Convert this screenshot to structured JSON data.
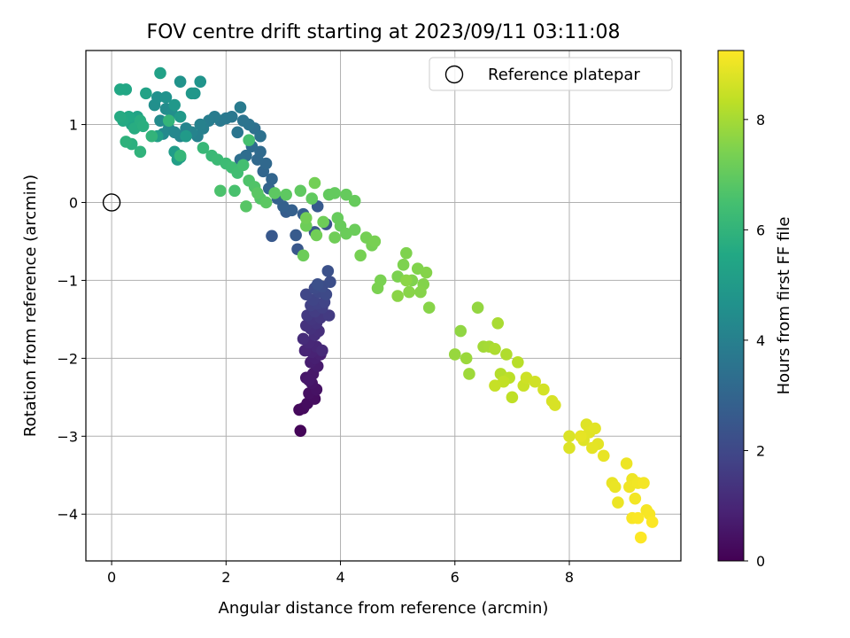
{
  "chart_data": {
    "type": "scatter",
    "title": "FOV centre drift starting at 2023/09/11 03:11:08",
    "xlabel": "Angular distance from reference (arcmin)",
    "ylabel": "Rotation from reference (arcmin)",
    "xlim": [
      -0.45,
      9.95
    ],
    "ylim": [
      -4.6,
      1.95
    ],
    "xticks": [
      0,
      2,
      4,
      6,
      8
    ],
    "yticks": [
      1,
      0,
      -1,
      -2,
      -3,
      -4
    ],
    "xtick_labels": [
      "0",
      "2",
      "4",
      "6",
      "8"
    ],
    "ytick_labels": [
      "1",
      "0",
      "−1",
      "−2",
      "−3",
      "−4"
    ],
    "grid": true,
    "legend": {
      "position": "top-right",
      "entries": [
        {
          "label": "Reference platepar",
          "marker": "open-circle"
        }
      ]
    },
    "reference_point": {
      "x": 0,
      "y": 0
    },
    "colorbar": {
      "label": "Hours from first FF file",
      "range": [
        0,
        9.25
      ],
      "ticks": [
        0,
        2,
        4,
        6,
        8
      ],
      "tick_labels": [
        "0",
        "2",
        "4",
        "6",
        "8"
      ],
      "colormap": "viridis"
    },
    "series": [
      {
        "color_value": "hours",
        "points": [
          [
            3.3,
            -2.93,
            0.1
          ],
          [
            3.28,
            -2.66,
            0.2
          ],
          [
            3.35,
            -2.64,
            0.25
          ],
          [
            3.42,
            -2.58,
            0.3
          ],
          [
            3.55,
            -2.52,
            0.35
          ],
          [
            3.45,
            -2.45,
            0.4
          ],
          [
            3.58,
            -2.4,
            0.45
          ],
          [
            3.5,
            -2.32,
            0.5
          ],
          [
            3.4,
            -2.25,
            0.55
          ],
          [
            3.52,
            -2.2,
            0.6
          ],
          [
            3.45,
            -2.28,
            0.62
          ],
          [
            3.6,
            -2.1,
            0.7
          ],
          [
            3.48,
            -2.05,
            0.75
          ],
          [
            3.55,
            -2.0,
            0.8
          ],
          [
            3.65,
            -1.95,
            0.85
          ],
          [
            3.5,
            -1.92,
            0.9
          ],
          [
            3.38,
            -1.9,
            0.95
          ],
          [
            3.58,
            -1.85,
            1.0
          ],
          [
            3.45,
            -1.8,
            1.05
          ],
          [
            3.68,
            -1.9,
            1.1
          ],
          [
            3.35,
            -1.75,
            1.15
          ],
          [
            3.55,
            -1.7,
            1.2
          ],
          [
            3.62,
            -1.65,
            1.25
          ],
          [
            3.48,
            -1.62,
            1.3
          ],
          [
            3.4,
            -1.58,
            1.35
          ],
          [
            3.58,
            -1.55,
            1.4
          ],
          [
            3.5,
            -1.5,
            1.45
          ],
          [
            3.65,
            -1.48,
            1.5
          ],
          [
            3.42,
            -1.45,
            1.55
          ],
          [
            3.8,
            -1.45,
            1.6
          ],
          [
            3.55,
            -1.4,
            1.65
          ],
          [
            3.68,
            -1.35,
            1.7
          ],
          [
            3.48,
            -1.32,
            1.75
          ],
          [
            3.6,
            -1.3,
            1.8
          ],
          [
            3.72,
            -1.28,
            1.85
          ],
          [
            3.52,
            -1.25,
            1.9
          ],
          [
            3.4,
            -1.18,
            1.95
          ],
          [
            3.62,
            -1.15,
            2.0
          ],
          [
            3.75,
            -1.18,
            2.05
          ],
          [
            3.55,
            -1.1,
            2.1
          ],
          [
            3.68,
            -1.08,
            2.15
          ],
          [
            3.82,
            -1.02,
            2.2
          ],
          [
            3.6,
            -1.05,
            2.25
          ],
          [
            3.78,
            -0.88,
            2.3
          ],
          [
            3.75,
            -0.28,
            2.4
          ],
          [
            3.55,
            -0.38,
            2.45
          ],
          [
            3.25,
            -0.6,
            2.5
          ],
          [
            2.8,
            -0.43,
            2.55
          ],
          [
            3.6,
            -0.05,
            2.6
          ],
          [
            3.22,
            -0.42,
            2.65
          ],
          [
            3.05,
            -0.12,
            2.7
          ],
          [
            3.35,
            -0.15,
            2.75
          ],
          [
            3.15,
            -0.1,
            2.8
          ],
          [
            3.0,
            -0.05,
            2.85
          ],
          [
            2.9,
            0.05,
            2.9
          ],
          [
            2.75,
            0.18,
            2.95
          ],
          [
            2.8,
            0.3,
            3.0
          ],
          [
            2.65,
            0.4,
            3.05
          ],
          [
            2.7,
            0.5,
            3.1
          ],
          [
            2.55,
            0.55,
            3.15
          ],
          [
            2.6,
            0.65,
            3.2
          ],
          [
            2.45,
            0.72,
            3.25
          ],
          [
            2.35,
            0.6,
            3.3
          ],
          [
            2.25,
            0.55,
            3.35
          ],
          [
            2.5,
            0.95,
            3.4
          ],
          [
            2.6,
            0.85,
            3.45
          ],
          [
            2.4,
            1.0,
            3.5
          ],
          [
            2.3,
            1.05,
            3.55
          ],
          [
            2.2,
            0.9,
            3.6
          ],
          [
            2.1,
            1.1,
            3.65
          ],
          [
            2.0,
            1.08,
            3.7
          ],
          [
            1.9,
            1.05,
            3.75
          ],
          [
            2.25,
            1.22,
            3.8
          ],
          [
            1.8,
            1.1,
            3.85
          ],
          [
            1.7,
            1.05,
            3.9
          ],
          [
            1.6,
            0.95,
            3.95
          ],
          [
            1.5,
            0.85,
            4.0
          ],
          [
            1.55,
            1.0,
            4.05
          ],
          [
            1.4,
            0.9,
            4.1
          ],
          [
            1.3,
            0.95,
            4.15
          ],
          [
            1.2,
            0.85,
            4.2
          ],
          [
            1.1,
            0.9,
            4.25
          ],
          [
            1.0,
            0.95,
            4.3
          ],
          [
            0.9,
            0.88,
            4.35
          ],
          [
            0.85,
            1.05,
            4.4
          ],
          [
            0.95,
            1.2,
            4.45
          ],
          [
            1.05,
            1.15,
            4.5
          ],
          [
            0.75,
            1.25,
            4.55
          ],
          [
            0.8,
            1.35,
            4.6
          ],
          [
            0.95,
            1.35,
            4.65
          ],
          [
            1.2,
            1.55,
            4.7
          ],
          [
            1.55,
            1.55,
            4.75
          ],
          [
            1.45,
            1.4,
            4.8
          ],
          [
            1.4,
            1.4,
            4.85
          ],
          [
            1.1,
            1.25,
            4.9
          ],
          [
            1.2,
            1.1,
            4.95
          ],
          [
            1.3,
            0.85,
            5.0
          ],
          [
            1.1,
            0.65,
            5.05
          ],
          [
            1.2,
            0.58,
            5.1
          ],
          [
            1.15,
            0.55,
            5.15
          ],
          [
            0.8,
            0.85,
            5.2
          ],
          [
            0.85,
            1.66,
            5.25
          ],
          [
            0.6,
            1.4,
            5.3
          ],
          [
            0.45,
            1.1,
            5.35
          ],
          [
            0.35,
            1.0,
            5.4
          ],
          [
            0.25,
            1.45,
            5.45
          ],
          [
            0.15,
            1.45,
            5.5
          ],
          [
            0.3,
            1.1,
            5.55
          ],
          [
            0.2,
            1.05,
            5.6
          ],
          [
            0.15,
            1.1,
            5.65
          ],
          [
            0.4,
            0.95,
            5.7
          ],
          [
            0.5,
            1.05,
            5.75
          ],
          [
            0.55,
            0.98,
            5.8
          ],
          [
            0.35,
            0.75,
            5.85
          ],
          [
            0.25,
            0.78,
            5.9
          ],
          [
            0.5,
            0.65,
            5.95
          ],
          [
            0.7,
            0.85,
            6.0
          ],
          [
            1.0,
            1.05,
            6.05
          ],
          [
            1.2,
            0.6,
            6.1
          ],
          [
            1.6,
            0.7,
            6.15
          ],
          [
            1.75,
            0.6,
            6.2
          ],
          [
            1.85,
            0.55,
            6.25
          ],
          [
            2.0,
            0.5,
            6.3
          ],
          [
            2.1,
            0.45,
            6.35
          ],
          [
            2.2,
            0.38,
            6.4
          ],
          [
            2.3,
            0.48,
            6.45
          ],
          [
            2.4,
            0.8,
            6.5
          ],
          [
            2.15,
            0.15,
            6.55
          ],
          [
            1.9,
            0.15,
            6.6
          ],
          [
            2.4,
            0.28,
            6.65
          ],
          [
            2.5,
            0.2,
            6.7
          ],
          [
            2.6,
            0.05,
            6.75
          ],
          [
            2.35,
            -0.05,
            6.8
          ],
          [
            2.55,
            0.12,
            6.85
          ],
          [
            2.7,
            0.0,
            6.88
          ],
          [
            2.85,
            0.12,
            6.9
          ],
          [
            3.05,
            0.1,
            6.92
          ],
          [
            3.3,
            0.15,
            6.95
          ],
          [
            3.5,
            0.05,
            6.97
          ],
          [
            3.8,
            0.1,
            7.0
          ],
          [
            3.9,
            0.12,
            7.02
          ],
          [
            4.1,
            0.1,
            7.04
          ],
          [
            4.25,
            0.02,
            7.06
          ],
          [
            3.95,
            -0.2,
            7.08
          ],
          [
            4.0,
            -0.3,
            7.1
          ],
          [
            4.1,
            -0.4,
            7.12
          ],
          [
            4.25,
            -0.35,
            7.14
          ],
          [
            3.35,
            -0.68,
            7.16
          ],
          [
            3.4,
            -0.3,
            7.18
          ],
          [
            3.7,
            -0.25,
            7.2
          ],
          [
            3.9,
            -0.45,
            7.22
          ],
          [
            3.58,
            -0.42,
            7.24
          ],
          [
            3.4,
            -0.2,
            7.26
          ],
          [
            3.55,
            0.25,
            7.28
          ],
          [
            4.45,
            -0.45,
            7.3
          ],
          [
            4.55,
            -0.55,
            7.32
          ],
          [
            4.35,
            -0.68,
            7.34
          ],
          [
            4.6,
            -0.5,
            7.36
          ],
          [
            4.7,
            -1.0,
            7.38
          ],
          [
            4.65,
            -1.1,
            7.4
          ],
          [
            5.0,
            -0.95,
            7.42
          ],
          [
            5.1,
            -0.8,
            7.44
          ],
          [
            5.15,
            -0.65,
            7.46
          ],
          [
            5.25,
            -1.0,
            7.48
          ],
          [
            5.35,
            -0.85,
            7.5
          ],
          [
            5.45,
            -1.05,
            7.52
          ],
          [
            5.5,
            -0.9,
            7.54
          ],
          [
            5.4,
            -1.15,
            7.56
          ],
          [
            5.55,
            -1.35,
            7.58
          ],
          [
            5.2,
            -1.15,
            7.6
          ],
          [
            5.0,
            -1.2,
            7.62
          ],
          [
            5.15,
            -1.0,
            7.64
          ],
          [
            6.1,
            -1.65,
            7.7
          ],
          [
            6.4,
            -1.35,
            7.75
          ],
          [
            6.0,
            -1.95,
            7.8
          ],
          [
            6.2,
            -2.0,
            7.85
          ],
          [
            6.25,
            -2.2,
            7.9
          ],
          [
            6.5,
            -1.85,
            7.95
          ],
          [
            6.6,
            -1.85,
            8.0
          ],
          [
            6.75,
            -1.55,
            8.05
          ],
          [
            6.7,
            -1.88,
            8.1
          ],
          [
            6.9,
            -1.95,
            8.15
          ],
          [
            6.8,
            -2.2,
            8.2
          ],
          [
            7.1,
            -2.05,
            8.25
          ],
          [
            6.95,
            -2.25,
            8.3
          ],
          [
            7.0,
            -2.5,
            8.35
          ],
          [
            6.85,
            -2.3,
            8.4
          ],
          [
            6.7,
            -2.35,
            8.45
          ],
          [
            7.2,
            -2.35,
            8.5
          ],
          [
            7.25,
            -2.25,
            8.55
          ],
          [
            7.4,
            -2.3,
            8.6
          ],
          [
            7.55,
            -2.4,
            8.65
          ],
          [
            7.7,
            -2.55,
            8.7
          ],
          [
            7.75,
            -2.6,
            8.72
          ],
          [
            8.0,
            -3.0,
            8.75
          ],
          [
            8.0,
            -3.15,
            8.78
          ],
          [
            8.3,
            -2.85,
            8.8
          ],
          [
            8.25,
            -3.05,
            8.82
          ],
          [
            8.35,
            -2.95,
            8.84
          ],
          [
            8.45,
            -2.9,
            8.86
          ],
          [
            8.5,
            -3.1,
            8.88
          ],
          [
            8.4,
            -3.15,
            8.9
          ],
          [
            8.2,
            -3.0,
            8.92
          ],
          [
            8.6,
            -3.25,
            8.94
          ],
          [
            8.75,
            -3.6,
            8.96
          ],
          [
            8.8,
            -3.65,
            8.98
          ],
          [
            8.85,
            -3.85,
            9.0
          ],
          [
            9.0,
            -3.35,
            9.02
          ],
          [
            9.1,
            -3.55,
            9.04
          ],
          [
            9.05,
            -3.65,
            9.06
          ],
          [
            9.2,
            -3.6,
            9.08
          ],
          [
            9.15,
            -3.8,
            9.1
          ],
          [
            9.3,
            -3.6,
            9.12
          ],
          [
            9.35,
            -3.95,
            9.14
          ],
          [
            9.4,
            -4.0,
            9.16
          ],
          [
            9.1,
            -4.05,
            9.18
          ],
          [
            9.2,
            -4.05,
            9.2
          ],
          [
            9.45,
            -4.1,
            9.22
          ],
          [
            9.25,
            -4.3,
            9.24
          ]
        ]
      }
    ]
  }
}
